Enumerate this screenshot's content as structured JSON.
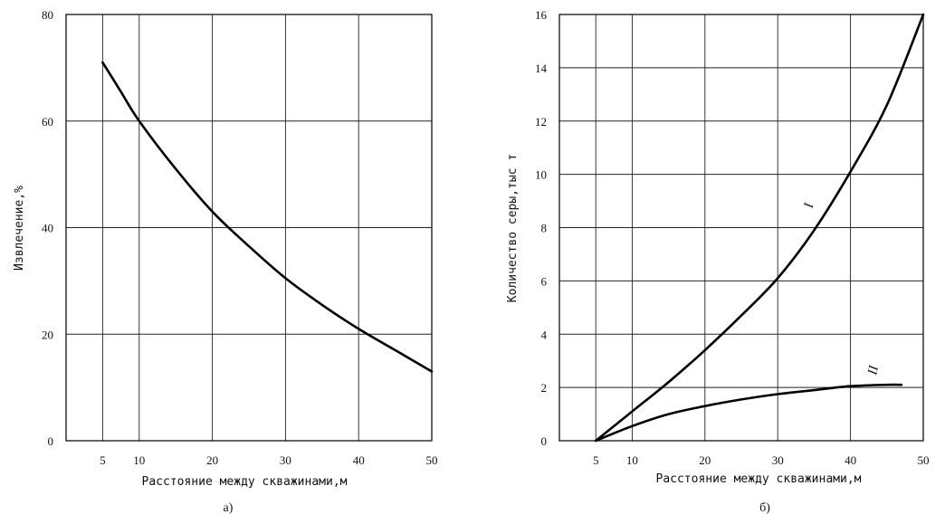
{
  "chart_data": [
    {
      "type": "line",
      "panel": "а)",
      "title": "",
      "xlabel": "Расстояние между скважинами,м",
      "ylabel": "Извлечение,%",
      "xlim": [
        0,
        50
      ],
      "ylim": [
        0,
        80
      ],
      "xticks": [
        5,
        10,
        20,
        30,
        40,
        50
      ],
      "yticks": [
        0,
        20,
        40,
        60,
        80
      ],
      "grid": true,
      "series": [
        {
          "x": [
            5,
            7.5,
            10,
            15,
            20,
            25,
            30,
            35,
            40,
            45,
            50
          ],
          "y": [
            71,
            65.5,
            60,
            51,
            43,
            36.5,
            30.5,
            25.5,
            21,
            17,
            13
          ]
        }
      ]
    },
    {
      "type": "line",
      "panel": "б)",
      "title": "",
      "xlabel": "Расстояние между скважинами,м",
      "ylabel": "Количество серы,тыс т",
      "xlim": [
        0,
        50
      ],
      "ylim": [
        0,
        16
      ],
      "xticks": [
        5,
        10,
        20,
        30,
        40,
        50
      ],
      "yticks": [
        0,
        2,
        4,
        6,
        8,
        10,
        12,
        14,
        16
      ],
      "grid": true,
      "series": [
        {
          "name": "I",
          "x": [
            5,
            10,
            15,
            20,
            25,
            30,
            35,
            40,
            45,
            50
          ],
          "y": [
            0,
            1.1,
            2.2,
            3.4,
            4.7,
            6.1,
            7.9,
            10.1,
            12.6,
            16
          ]
        },
        {
          "name": "II",
          "x": [
            5,
            10,
            15,
            20,
            25,
            30,
            35,
            40,
            45,
            47
          ],
          "y": [
            0,
            0.55,
            1.0,
            1.3,
            1.55,
            1.75,
            1.9,
            2.05,
            2.1,
            2.1
          ]
        }
      ]
    }
  ]
}
